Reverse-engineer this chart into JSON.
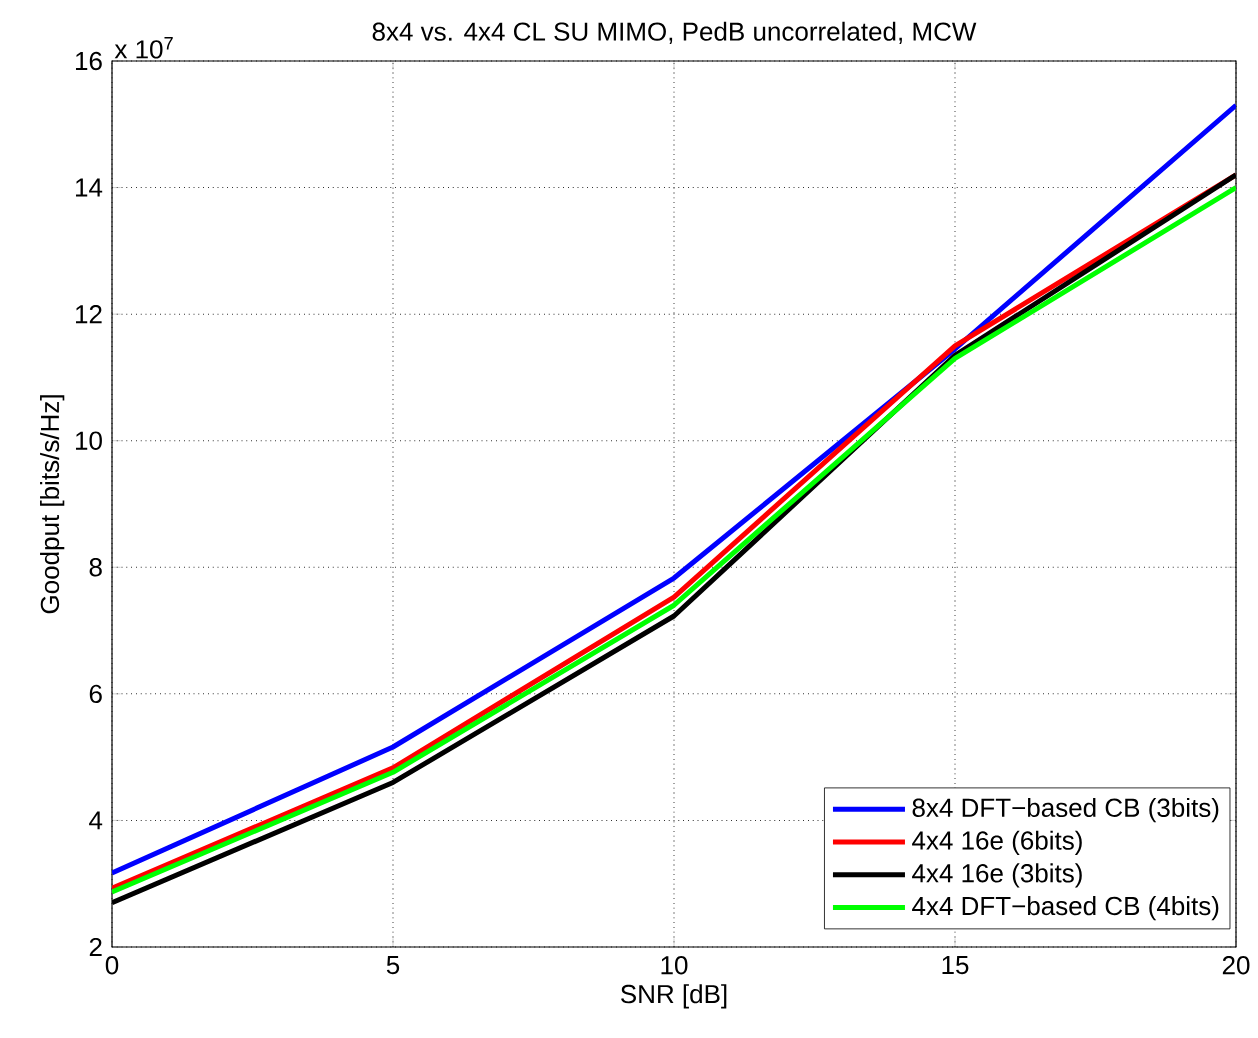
{
  "chart_data": {
    "type": "line",
    "title": "8x4 vs. 4x4 CL SU MIMO, PedB uncorrelated, MCW",
    "xlabel": "SNR [dB]",
    "ylabel": "Goodput [bits/s/Hz]",
    "annotations": [
      "x 10$^{7}$"
    ],
    "x": [
      0,
      5,
      10,
      15,
      20
    ],
    "series": [
      {
        "name": "8x4 DFT−based CB (3bits)",
        "color": "#0000ff",
        "values": [
          3.17,
          5.16,
          7.83,
          11.45,
          15.3
        ]
      },
      {
        "name": "4x4 16e (6bits)",
        "color": "#ff0000",
        "values": [
          2.93,
          4.83,
          7.53,
          11.5,
          14.2
        ]
      },
      {
        "name": "4x4 16e (3bits)",
        "color": "#000000",
        "values": [
          2.7,
          4.6,
          7.23,
          11.35,
          14.2
        ]
      },
      {
        "name": "4x4 DFT−based CB (4bits)",
        "color": "#00ff00",
        "values": [
          2.87,
          4.76,
          7.4,
          11.3,
          14.0
        ]
      }
    ],
    "xlim": [
      0,
      20
    ],
    "ylim": [
      2,
      16
    ],
    "xticks": [
      0,
      5,
      10,
      15,
      20
    ],
    "yticks": [
      2,
      4,
      6,
      8,
      10,
      12,
      14,
      16
    ],
    "grid": true,
    "legend": "bottom right",
    "marker": "none",
    "line_style": "solid"
  }
}
